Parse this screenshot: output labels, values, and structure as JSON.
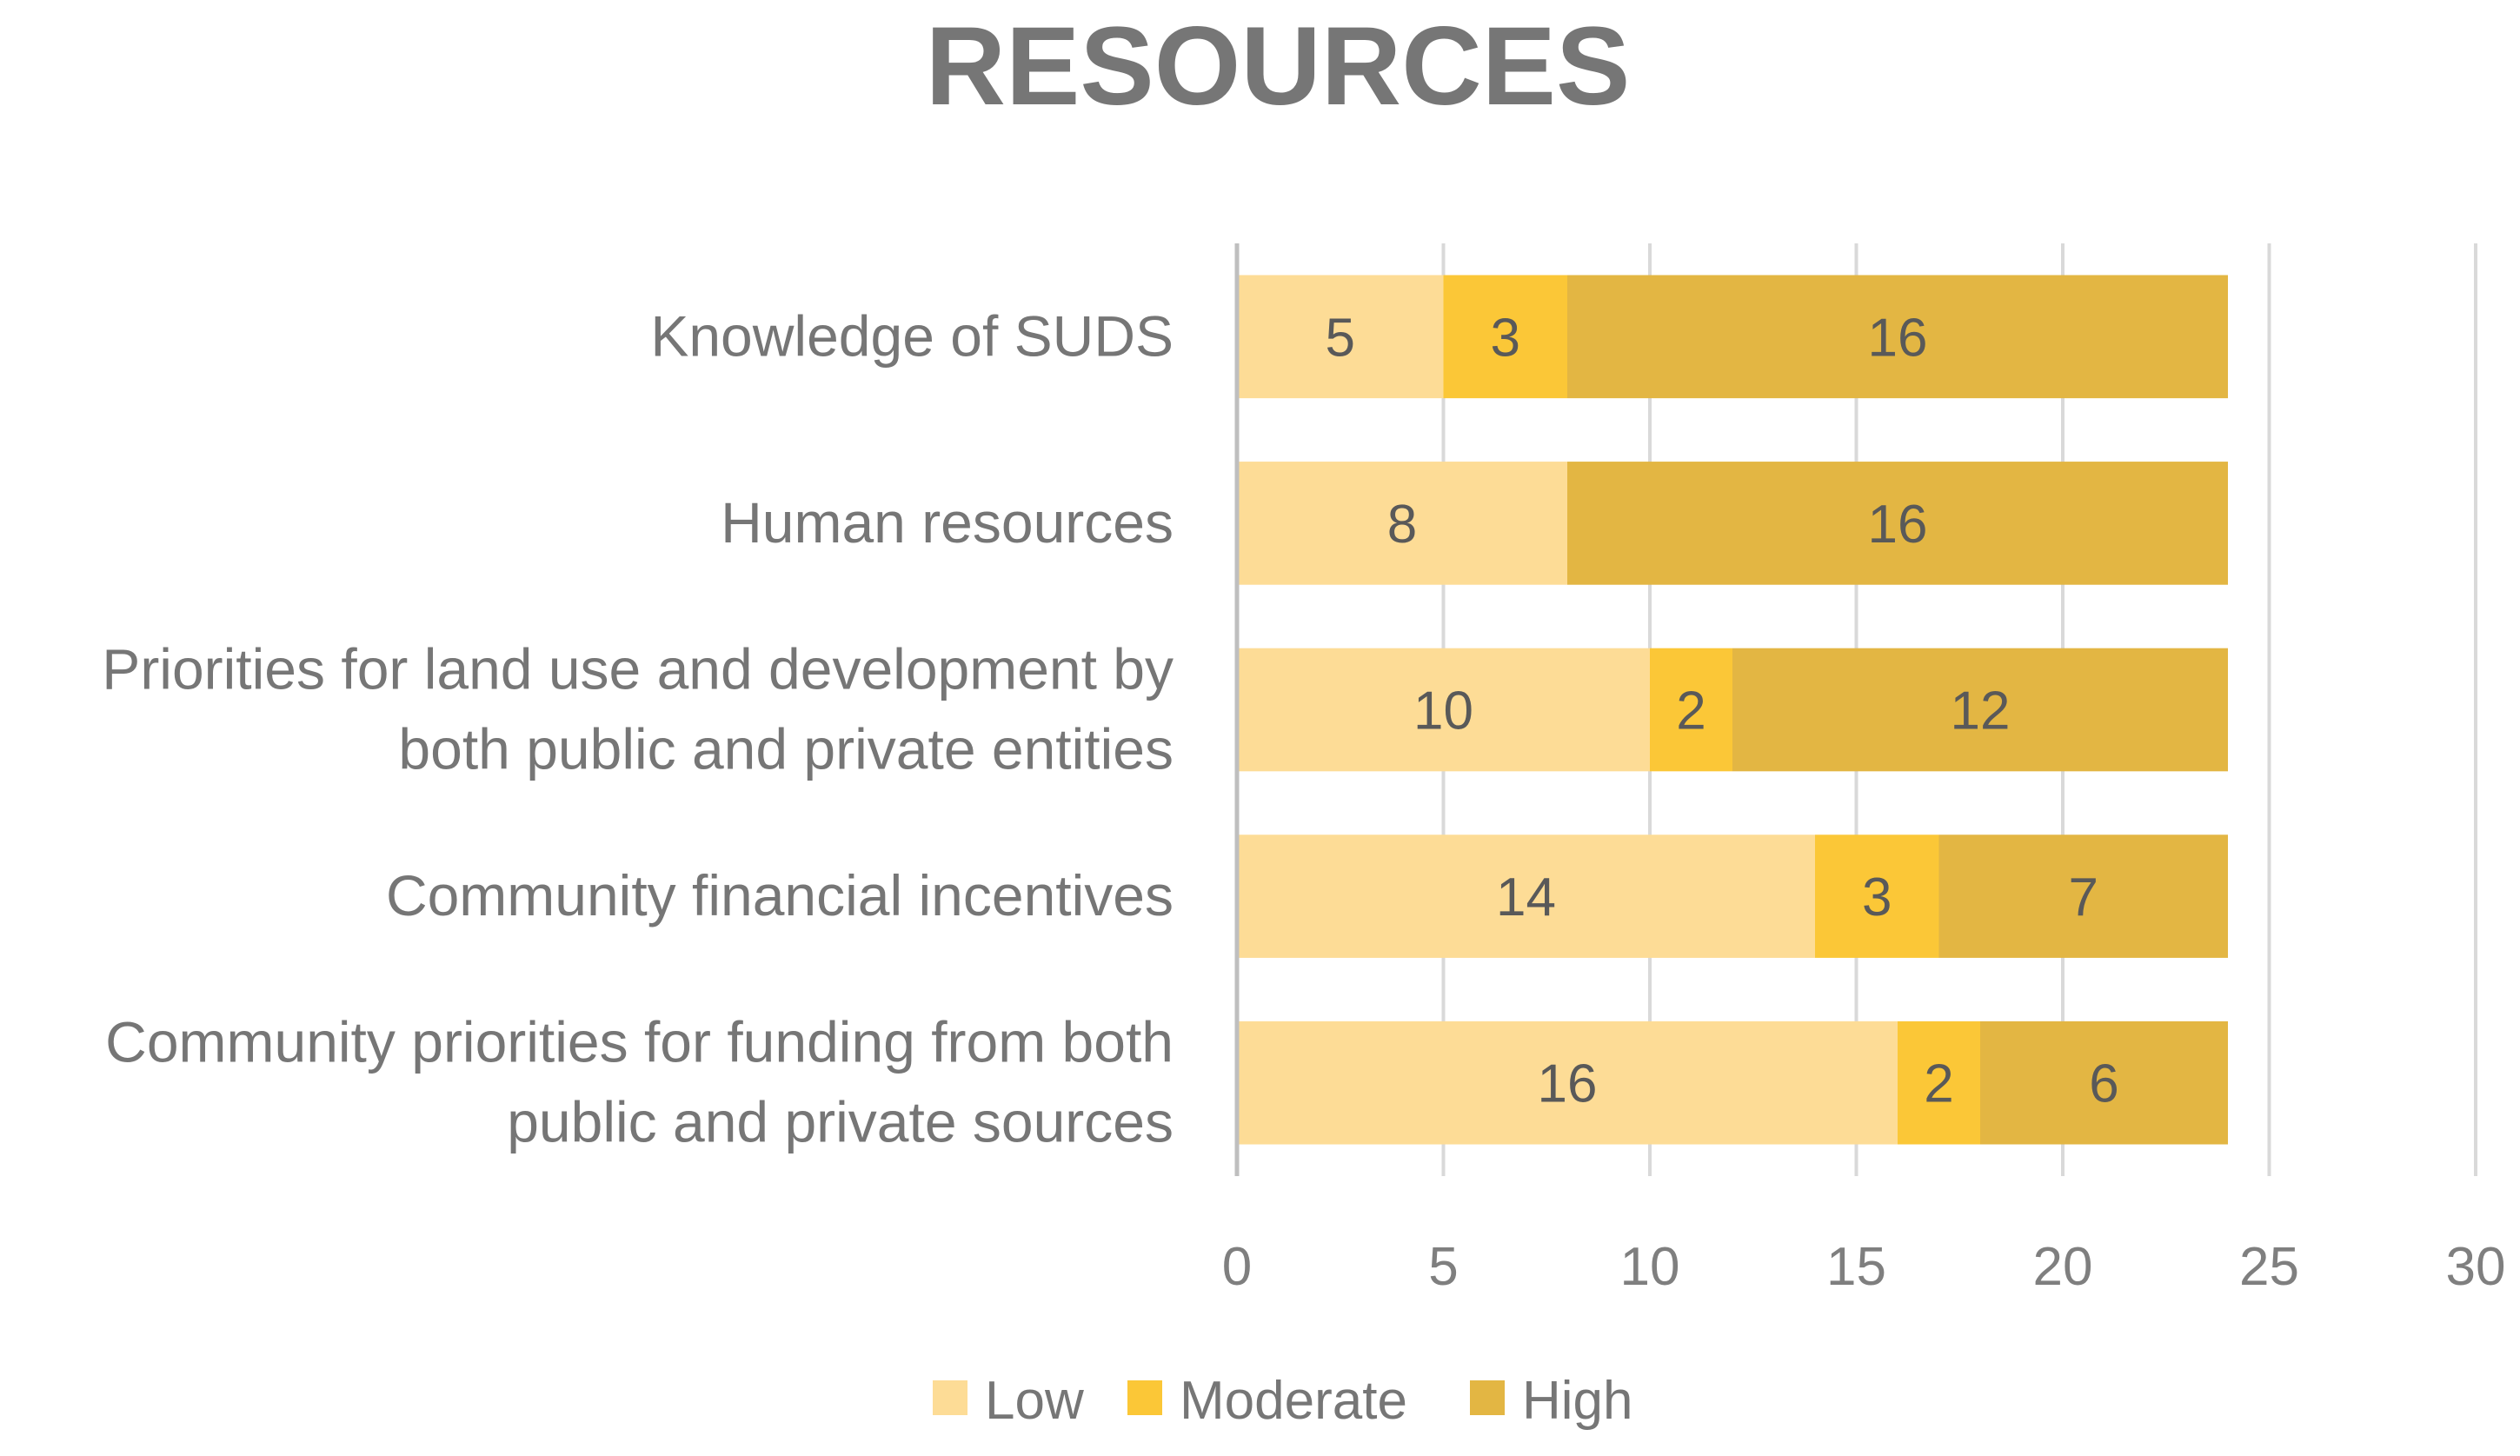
{
  "chart_data": {
    "type": "bar",
    "orientation": "horizontal",
    "stacked": true,
    "title": "RESOURCES",
    "xlabel": "",
    "ylabel": "",
    "xlim": [
      0,
      30
    ],
    "x_ticks": [
      0,
      5,
      10,
      15,
      20,
      25,
      30
    ],
    "grid": true,
    "legend_position": "bottom",
    "categories": [
      [
        "Knowledge of SUDS"
      ],
      [
        "Human resources"
      ],
      [
        "Priorities for land use and development by",
        "both public and private entities"
      ],
      [
        "Community financial incentives"
      ],
      [
        "Community priorities for funding from both",
        "public and private sources"
      ]
    ],
    "series": [
      {
        "name": "Low",
        "color": "#FDDC96",
        "values": [
          5,
          8,
          10,
          14,
          16
        ]
      },
      {
        "name": "Moderate",
        "color": "#FBC737",
        "values": [
          3,
          0,
          2,
          3,
          2
        ]
      },
      {
        "name": "High",
        "color": "#E3B643",
        "values": [
          16,
          16,
          12,
          7,
          6
        ]
      }
    ]
  }
}
